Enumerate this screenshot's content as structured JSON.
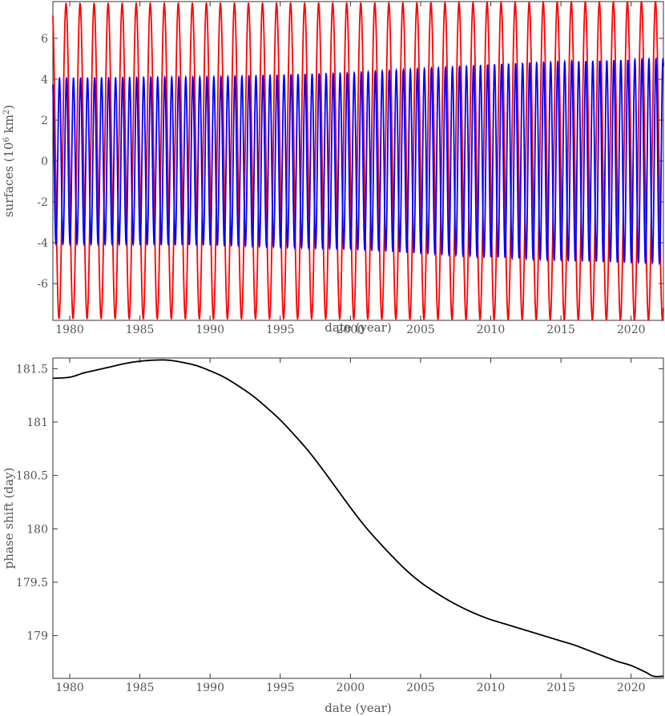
{
  "chart_data": [
    {
      "type": "line",
      "xlabel": "date (year)",
      "ylabel_prefix": "surfaces (10",
      "ylabel_exp1": "6",
      "ylabel_mid": " km",
      "ylabel_exp2": "2",
      "ylabel_suffix": ")",
      "xlim": [
        1978.8,
        2022.3
      ],
      "ylim": [
        -7.8,
        7.8
      ],
      "x_ticks": [
        1980,
        1985,
        1990,
        1995,
        2000,
        2005,
        2010,
        2015,
        2020
      ],
      "y_ticks": [
        -6,
        -4,
        -2,
        0,
        2,
        4,
        6
      ],
      "x_start": 1978.8,
      "x_end": 2022.3,
      "series": [
        {
          "color": "#ff0000",
          "stroke_width": 1.8,
          "amplitude": [
            [
              1978.8,
              7.7
            ],
            [
              1990,
              7.72
            ],
            [
              2000,
              7.72
            ],
            [
              2010,
              7.75
            ],
            [
              2022.3,
              7.8
            ]
          ],
          "period_years": 1.0,
          "phase_shift_years": 0.0
        },
        {
          "color": "#0000ff",
          "stroke_width": 1.8,
          "amplitude": [
            [
              1978.8,
              4.05
            ],
            [
              1990,
              4.1
            ],
            [
              1995,
              4.2
            ],
            [
              2000,
              4.3
            ],
            [
              2005,
              4.5
            ],
            [
              2010,
              4.7
            ],
            [
              2015,
              4.85
            ],
            [
              2022.3,
              5.0
            ]
          ],
          "period_years": 0.5,
          "phase_shift_years": 0.0
        }
      ]
    },
    {
      "type": "line",
      "xlabel": "date (year)",
      "ylabel": "phase shift (day)",
      "xlim": [
        1978.8,
        2022.3
      ],
      "ylim": [
        178.6,
        181.6
      ],
      "x_ticks": [
        1980,
        1985,
        1990,
        1995,
        2000,
        2005,
        2010,
        2015,
        2020
      ],
      "y_ticks": [
        179,
        179.5,
        180,
        180.5,
        181,
        181.5
      ],
      "series": [
        {
          "color": "#000000",
          "stroke_width": 1.8,
          "points": [
            [
              1978.8,
              181.41
            ],
            [
              1980,
              181.42
            ],
            [
              1981,
              181.46
            ],
            [
              1982,
              181.49
            ],
            [
              1983,
              181.52
            ],
            [
              1984,
              181.55
            ],
            [
              1985,
              181.57
            ],
            [
              1986,
              181.58
            ],
            [
              1987,
              181.58
            ],
            [
              1988,
              181.56
            ],
            [
              1989,
              181.53
            ],
            [
              1990,
              181.48
            ],
            [
              1991,
              181.42
            ],
            [
              1992,
              181.34
            ],
            [
              1993,
              181.25
            ],
            [
              1994,
              181.14
            ],
            [
              1995,
              181.02
            ],
            [
              1996,
              180.88
            ],
            [
              1997,
              180.73
            ],
            [
              1998,
              180.56
            ],
            [
              1999,
              180.38
            ],
            [
              2000,
              180.2
            ],
            [
              2001,
              180.03
            ],
            [
              2002,
              179.88
            ],
            [
              2003,
              179.74
            ],
            [
              2004,
              179.61
            ],
            [
              2005,
              179.5
            ],
            [
              2006,
              179.41
            ],
            [
              2007,
              179.33
            ],
            [
              2008,
              179.26
            ],
            [
              2009,
              179.2
            ],
            [
              2010,
              179.15
            ],
            [
              2011,
              179.11
            ],
            [
              2012,
              179.07
            ],
            [
              2013,
              179.03
            ],
            [
              2014,
              178.99
            ],
            [
              2015,
              178.95
            ],
            [
              2016,
              178.91
            ],
            [
              2017,
              178.86
            ],
            [
              2018,
              178.81
            ],
            [
              2019,
              178.76
            ],
            [
              2020,
              178.72
            ],
            [
              2021,
              178.66
            ],
            [
              2021.6,
              178.62
            ],
            [
              2022.3,
              178.62
            ]
          ]
        }
      ]
    }
  ]
}
